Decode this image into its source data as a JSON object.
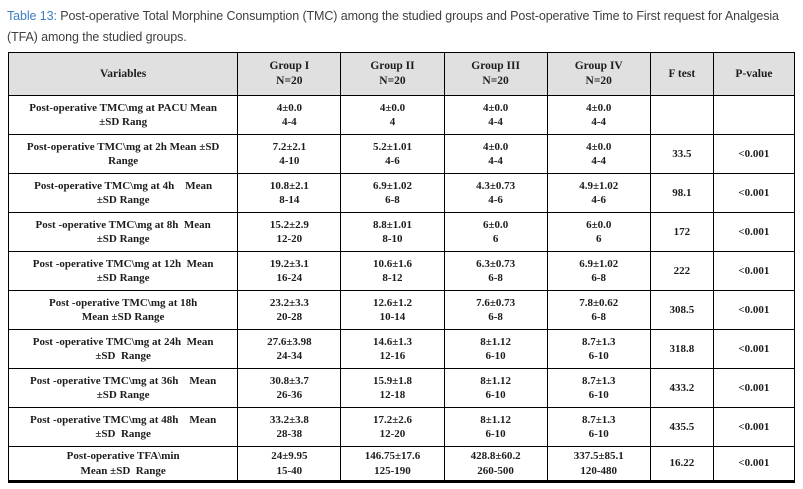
{
  "caption": {
    "label": "Table 13:",
    "text": " Post-operative Total Morphine Consumption (TMC) among the studied groups and Post-operative Time to First request for Analgesia (TFA) among the studied groups."
  },
  "colors": {
    "caption_label_blue": "#3b7cc4",
    "caption_text": "#3d3f42",
    "header_background": "#e0e0e0",
    "table_border": "#000000",
    "table_text": "#1d1d20"
  },
  "table": {
    "columns": [
      {
        "label": "Variables",
        "sub": ""
      },
      {
        "label": "Group I",
        "sub": "N=20"
      },
      {
        "label": "Group II",
        "sub": "N=20"
      },
      {
        "label": "Group III",
        "sub": "N=20"
      },
      {
        "label": "Group IV",
        "sub": "N=20"
      },
      {
        "label": "F test",
        "sub": ""
      },
      {
        "label": "P-value",
        "sub": ""
      }
    ],
    "rows": [
      {
        "variable": [
          "Post-operative TMC\\mg at PACU Mean",
          "±SD Rang"
        ],
        "groups": [
          [
            "4±0.0",
            "4-4"
          ],
          [
            "4±0.0",
            "4"
          ],
          [
            "4±0.0",
            "4-4"
          ],
          [
            "4±0.0",
            "4-4"
          ]
        ],
        "f_test": "",
        "p_value": ""
      },
      {
        "variable": [
          "Post-operative TMC\\mg at 2h Mean ±SD",
          "Range"
        ],
        "groups": [
          [
            "7.2±2.1",
            "4-10"
          ],
          [
            "5.2±1.01",
            "4-6"
          ],
          [
            "4±0.0",
            "4-4"
          ],
          [
            "4±0.0",
            "4-4"
          ]
        ],
        "f_test": "33.5",
        "p_value": "<0.001"
      },
      {
        "variable": [
          "Post-operative TMC\\mg at 4h    Mean",
          "±SD Range"
        ],
        "groups": [
          [
            "10.8±2.1",
            "8-14"
          ],
          [
            "6.9±1.02",
            "6-8"
          ],
          [
            "4.3±0.73",
            "4-6"
          ],
          [
            "4.9±1.02",
            "4-6"
          ]
        ],
        "f_test": "98.1",
        "p_value": "<0.001"
      },
      {
        "variable": [
          "Post -operative TMC\\mg at 8h  Mean",
          "±SD Range"
        ],
        "groups": [
          [
            "15.2±2.9",
            "12-20"
          ],
          [
            "8.8±1.01",
            "8-10"
          ],
          [
            "6±0.0",
            "6"
          ],
          [
            "6±0.0",
            "6"
          ]
        ],
        "f_test": "172",
        "p_value": "<0.001"
      },
      {
        "variable": [
          "Post -operative TMC\\mg at 12h  Mean",
          "±SD Range"
        ],
        "groups": [
          [
            "19.2±3.1",
            "16-24"
          ],
          [
            "10.6±1.6",
            "8-12"
          ],
          [
            "6.3±0.73",
            "6-8"
          ],
          [
            "6.9±1.02",
            "6-8"
          ]
        ],
        "f_test": "222",
        "p_value": "<0.001"
      },
      {
        "variable": [
          "Post -operative TMC\\mg at 18h",
          "Mean ±SD Range"
        ],
        "groups": [
          [
            "23.2±3.3",
            "20-28"
          ],
          [
            "12.6±1.2",
            "10-14"
          ],
          [
            "7.6±0.73",
            "6-8"
          ],
          [
            "7.8±0.62",
            "6-8"
          ]
        ],
        "f_test": "308.5",
        "p_value": "<0.001"
      },
      {
        "variable": [
          "Post -operative TMC\\mg at 24h  Mean",
          "±SD  Range"
        ],
        "groups": [
          [
            "27.6±3.98",
            "24-34"
          ],
          [
            "14.6±1.3",
            "12-16"
          ],
          [
            "8±1.12",
            "6-10"
          ],
          [
            "8.7±1.3",
            "6-10"
          ]
        ],
        "f_test": "318.8",
        "p_value": "<0.001"
      },
      {
        "variable": [
          "Post -operative TMC\\mg at 36h    Mean",
          "±SD Range"
        ],
        "groups": [
          [
            "30.8±3.7",
            "26-36"
          ],
          [
            "15.9±1.8",
            "12-18"
          ],
          [
            "8±1.12",
            "6-10"
          ],
          [
            "8.7±1.3",
            "6-10"
          ]
        ],
        "f_test": "433.2",
        "p_value": "<0.001"
      },
      {
        "variable": [
          "Post -operative TMC\\mg at 48h    Mean",
          "±SD  Range"
        ],
        "groups": [
          [
            "33.2±3.8",
            "28-38"
          ],
          [
            "17.2±2.6",
            "12-20"
          ],
          [
            "8±1.12",
            "6-10"
          ],
          [
            "8.7±1.3",
            "6-10"
          ]
        ],
        "f_test": "435.5",
        "p_value": "<0.001"
      },
      {
        "variable": [
          "Post-operative TFA\\min",
          "Mean ±SD  Range"
        ],
        "groups": [
          [
            "24±9.95",
            "15-40"
          ],
          [
            "146.75±17.6",
            "125-190"
          ],
          [
            "428.8±60.2",
            "260-500"
          ],
          [
            "337.5±85.1",
            "120-480"
          ]
        ],
        "f_test": "16.22",
        "p_value": "<0.001"
      }
    ]
  }
}
